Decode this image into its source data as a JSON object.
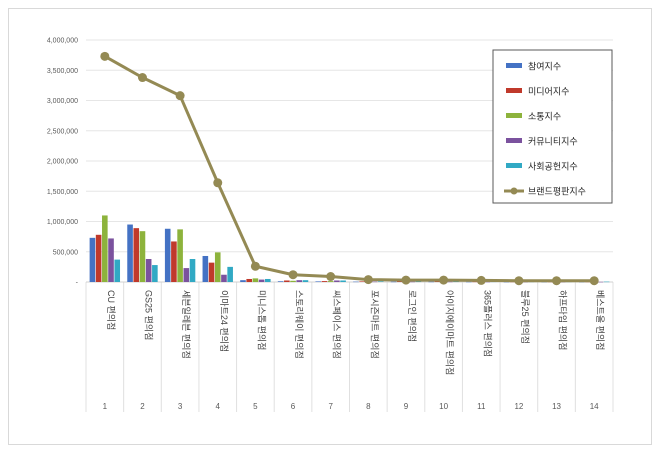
{
  "chart_data": {
    "type": "bar",
    "title": "",
    "xlabel": "",
    "ylabel": "",
    "ylim": [
      0,
      4000000
    ],
    "yticks": [
      "-",
      "500,000",
      "1,000,000",
      "1,500,000",
      "2,000,000",
      "2,500,000",
      "3,000,000",
      "3,500,000",
      "4,000,000"
    ],
    "grid": true,
    "legend_position": "top-right",
    "categories": [
      "CU 편의점",
      "GS25 편의점",
      "세븐일레븐 편의점",
      "이마트24 편의점",
      "미니스톱 편의점",
      "스토리웨이 편의점",
      "씨스페이스 편의점",
      "포시즌마트 편의점",
      "로그인 편의점",
      "아이지에이마트 편의점",
      "365플러스 편의점",
      "블루25 편의점",
      "하프타임 편의점",
      "베스트올 편의점"
    ],
    "ranks": [
      "1",
      "2",
      "3",
      "4",
      "5",
      "6",
      "7",
      "8",
      "9",
      "10",
      "11",
      "12",
      "13",
      "14"
    ],
    "series": [
      {
        "name": "참여지수",
        "type": "bar",
        "color": "#4472c4",
        "values": [
          730000,
          950000,
          880000,
          430000,
          30000,
          12000,
          10000,
          6000,
          5000,
          5000,
          4000,
          3000,
          3000,
          3000
        ]
      },
      {
        "name": "미디어지수",
        "type": "bar",
        "color": "#c0392b",
        "values": [
          780000,
          890000,
          670000,
          320000,
          50000,
          25000,
          15000,
          10000,
          8000,
          8000,
          6000,
          5000,
          5000,
          5000
        ]
      },
      {
        "name": "소통지수",
        "type": "bar",
        "color": "#8db33c",
        "values": [
          1100000,
          840000,
          870000,
          490000,
          60000,
          20000,
          15000,
          8000,
          6000,
          6000,
          5000,
          4000,
          4000,
          4000
        ]
      },
      {
        "name": "커뮤니티지수",
        "type": "bar",
        "color": "#7b529e",
        "values": [
          720000,
          380000,
          230000,
          120000,
          40000,
          30000,
          25000,
          6000,
          5000,
          5000,
          4000,
          3000,
          3000,
          3000
        ]
      },
      {
        "name": "사회공헌지수",
        "type": "bar",
        "color": "#31a9c4",
        "values": [
          370000,
          280000,
          380000,
          250000,
          50000,
          30000,
          25000,
          10000,
          8000,
          8000,
          7000,
          6000,
          6000,
          6000
        ]
      },
      {
        "name": "브랜드평판지수",
        "type": "line",
        "color": "#948a54",
        "values": [
          3730000,
          3380000,
          3080000,
          1640000,
          260000,
          120000,
          90000,
          40000,
          32000,
          32000,
          26000,
          21000,
          21000,
          21000
        ]
      }
    ]
  }
}
